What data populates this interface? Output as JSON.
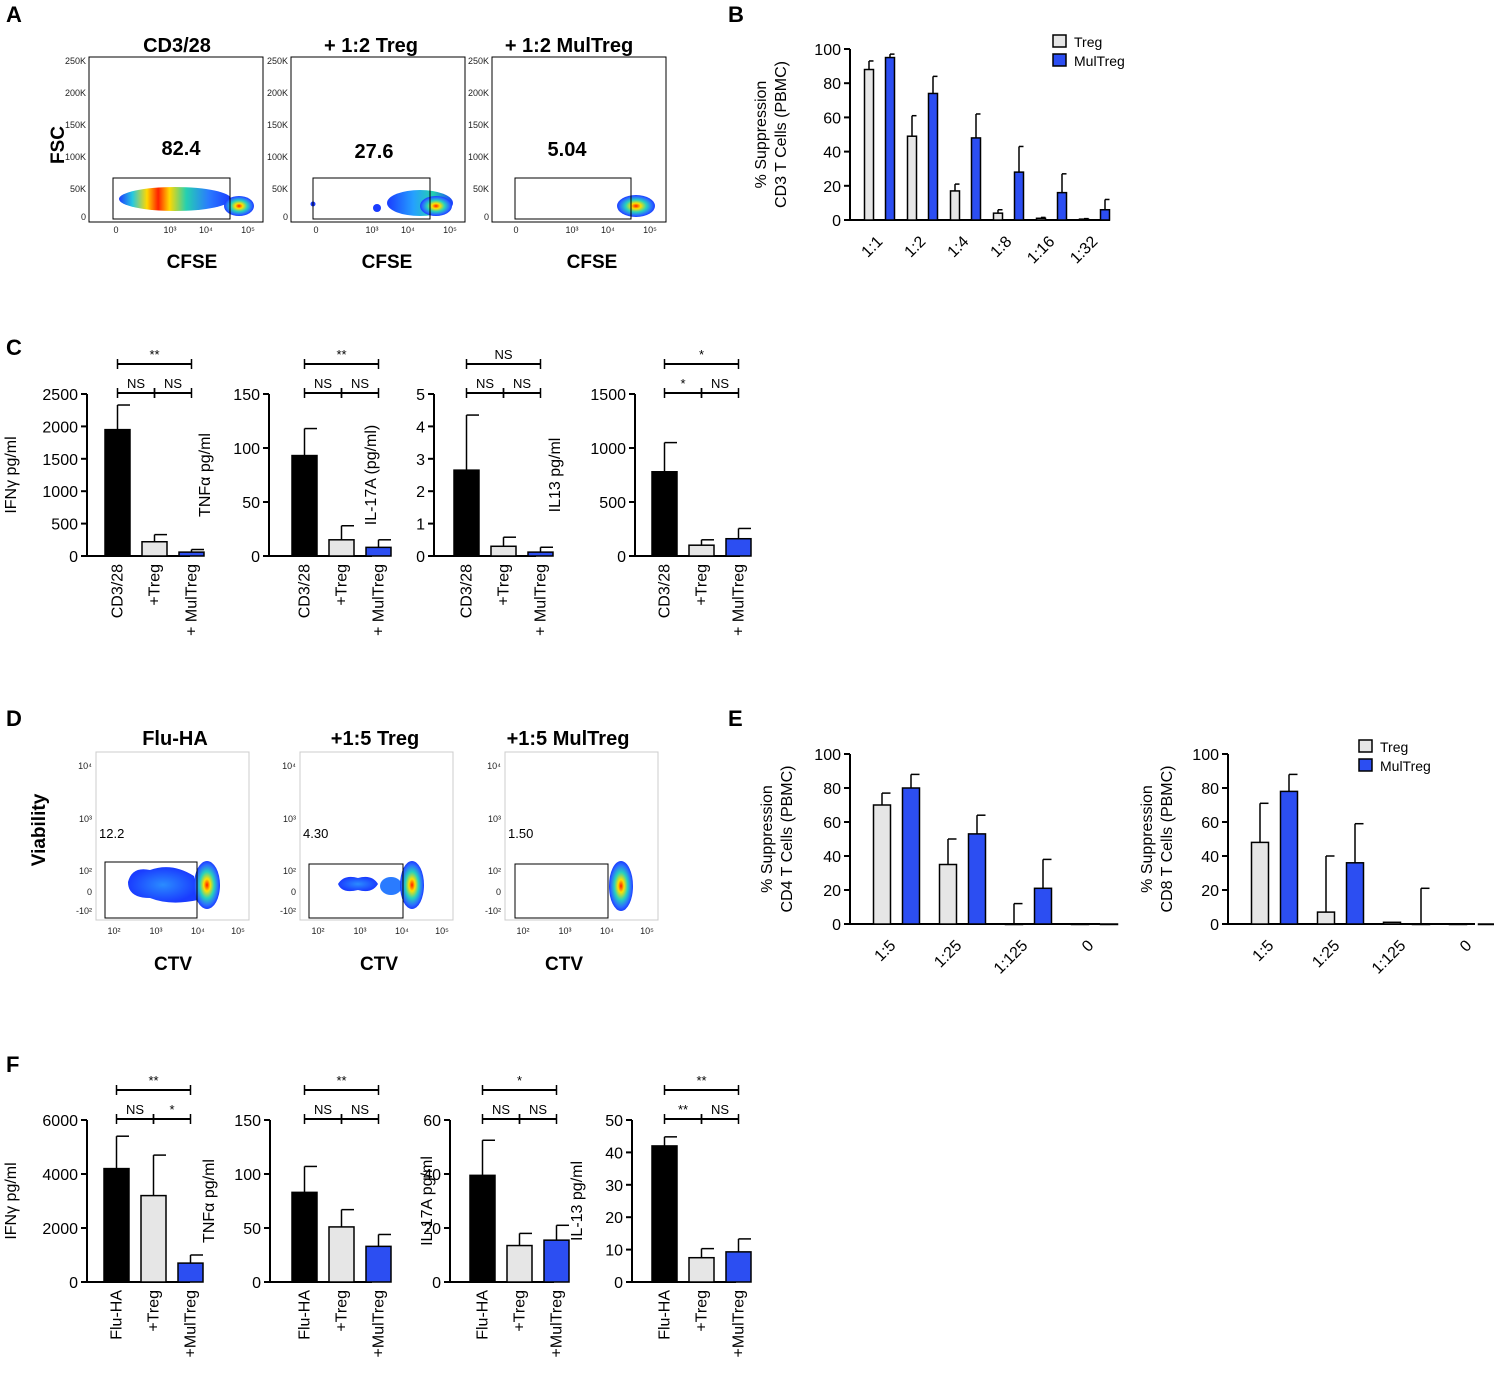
{
  "panel_labels": {
    "A": "A",
    "B": "B",
    "C": "C",
    "D": "D",
    "E": "E",
    "F": "F"
  },
  "panel_A": {
    "y_axis": "FSC",
    "x_axis": "CFSE",
    "y_ticks": [
      "250K",
      "200K",
      "150K",
      "100K",
      "50K",
      "0"
    ],
    "x_ticks": [
      "0",
      "10³",
      "10⁴",
      "10⁵"
    ],
    "plots": [
      {
        "title": "CD3/28",
        "gate_value": "82.4"
      },
      {
        "title": "+ 1:2 Treg",
        "gate_value": "27.6"
      },
      {
        "title": "+ 1:2 MulTreg",
        "gate_value": "5.04"
      }
    ]
  },
  "panel_D": {
    "y_axis": "Viability",
    "x_axis": "CTV",
    "y_ticks": [
      "10⁴",
      "10³",
      "10²",
      "0",
      "-10²"
    ],
    "x_ticks": [
      "10²",
      "10³",
      "10⁴",
      "10⁵"
    ],
    "plots": [
      {
        "title": "Flu-HA",
        "gate_value": "12.2"
      },
      {
        "title": "+1:5 Treg",
        "gate_value": "4.30"
      },
      {
        "title": "+1:5 MulTreg",
        "gate_value": "1.50"
      }
    ]
  },
  "colors": {
    "black_bar": "#000000",
    "grey_bar": "#e6e6e6",
    "blue_bar": "#2c4ef2",
    "flow_low": "#1a3cff",
    "flow_mid": "#25d0c8",
    "flow_high": "#ffe000",
    "flow_peak": "#ff2000"
  },
  "chart_data": [
    {
      "id": "B",
      "type": "bar",
      "ylabel": [
        "% Suppression",
        "CD3 T Cells (PBMC)"
      ],
      "categories": [
        "1:1",
        "1:2",
        "1:4",
        "1:8",
        "1:16",
        "1:32"
      ],
      "ylim": [
        0,
        100
      ],
      "yticks": [
        0,
        20,
        40,
        60,
        80,
        100
      ],
      "series": [
        {
          "name": "Treg",
          "values": [
            88,
            49,
            17,
            4,
            1,
            0.5
          ],
          "errors": [
            5,
            12,
            4,
            2,
            0.5,
            0.3
          ]
        },
        {
          "name": "MulTreg",
          "values": [
            95,
            74,
            48,
            28,
            16,
            6
          ],
          "errors": [
            2,
            10,
            14,
            15,
            11,
            6
          ]
        }
      ],
      "legend": "top-right"
    },
    {
      "id": "C1",
      "type": "bar",
      "ylabel": [
        "IFNγ pg/ml"
      ],
      "categories": [
        "CD3/28",
        "+Treg",
        "+ MulTreg"
      ],
      "ylim": [
        0,
        2500
      ],
      "yticks": [
        0,
        500,
        1000,
        1500,
        2000,
        2500
      ],
      "values": [
        1950,
        220,
        60
      ],
      "errors": [
        380,
        110,
        40
      ],
      "significance": [
        {
          "from": 0,
          "to": 2,
          "label": "**",
          "level": 1
        },
        {
          "from": 0,
          "to": 1,
          "label": "NS",
          "level": 0
        },
        {
          "from": 1,
          "to": 2,
          "label": "NS",
          "level": 0
        }
      ]
    },
    {
      "id": "C2",
      "type": "bar",
      "ylabel": [
        "TNFα pg/ml"
      ],
      "categories": [
        "CD3/28",
        "+Treg",
        "+ MulTreg"
      ],
      "ylim": [
        0,
        150
      ],
      "yticks": [
        0,
        50,
        100,
        150
      ],
      "values": [
        93,
        15,
        8
      ],
      "errors": [
        25,
        13,
        7
      ],
      "significance": [
        {
          "from": 0,
          "to": 2,
          "label": "**",
          "level": 1
        },
        {
          "from": 0,
          "to": 1,
          "label": "NS",
          "level": 0
        },
        {
          "from": 1,
          "to": 2,
          "label": "NS",
          "level": 0
        }
      ]
    },
    {
      "id": "C3",
      "type": "bar",
      "ylabel": [
        "IL-17A (pg/ml)"
      ],
      "categories": [
        "CD3/28",
        "+Treg",
        "+ MulTreg"
      ],
      "ylim": [
        0,
        5
      ],
      "yticks": [
        0,
        1,
        2,
        3,
        4,
        5
      ],
      "values": [
        2.65,
        0.3,
        0.12
      ],
      "errors": [
        1.7,
        0.28,
        0.15
      ],
      "significance": [
        {
          "from": 0,
          "to": 2,
          "label": "NS",
          "level": 1
        },
        {
          "from": 0,
          "to": 1,
          "label": "NS",
          "level": 0
        },
        {
          "from": 1,
          "to": 2,
          "label": "NS",
          "level": 0
        }
      ]
    },
    {
      "id": "C4",
      "type": "bar",
      "ylabel": [
        "IL13 pg/ml"
      ],
      "categories": [
        "CD3/28",
        "+Treg",
        "+ MulTreg"
      ],
      "ylim": [
        0,
        1500
      ],
      "yticks": [
        0,
        500,
        1000,
        1500
      ],
      "values": [
        780,
        100,
        160
      ],
      "errors": [
        270,
        50,
        95
      ],
      "significance": [
        {
          "from": 0,
          "to": 2,
          "label": "*",
          "level": 1
        },
        {
          "from": 0,
          "to": 1,
          "label": "*",
          "level": 0
        },
        {
          "from": 1,
          "to": 2,
          "label": "NS",
          "level": 0
        }
      ]
    },
    {
      "id": "E1",
      "type": "bar",
      "ylabel": [
        "% Suppression",
        "CD4 T Cells (PBMC)"
      ],
      "categories": [
        "1:5",
        "1:25",
        "1:125",
        "0"
      ],
      "ylim": [
        0,
        100
      ],
      "yticks": [
        0,
        20,
        40,
        60,
        80,
        100
      ],
      "series": [
        {
          "name": "Treg",
          "values": [
            70,
            35,
            0,
            0
          ],
          "errors": [
            7,
            15,
            12,
            0
          ]
        },
        {
          "name": "MulTreg",
          "values": [
            80,
            53,
            21,
            0
          ],
          "errors": [
            8,
            11,
            17,
            0
          ]
        }
      ]
    },
    {
      "id": "E2",
      "type": "bar",
      "ylabel": [
        "% Suppression",
        "CD8 T Cells (PBMC)"
      ],
      "categories": [
        "1:5",
        "1:25",
        "1:125",
        "0"
      ],
      "ylim": [
        0,
        100
      ],
      "yticks": [
        0,
        20,
        40,
        60,
        80,
        100
      ],
      "series": [
        {
          "name": "Treg",
          "values": [
            48,
            7,
            1,
            0
          ],
          "errors": [
            23,
            33,
            0,
            0
          ]
        },
        {
          "name": "MulTreg",
          "values": [
            78,
            36,
            0,
            0
          ],
          "errors": [
            10,
            23,
            21,
            0
          ]
        }
      ],
      "legend": "top-right"
    },
    {
      "id": "F1",
      "type": "bar",
      "ylabel": [
        "IFNγ pg/ml"
      ],
      "categories": [
        "Flu-HA",
        "+Treg",
        "+MulTreg"
      ],
      "ylim": [
        0,
        6000
      ],
      "yticks": [
        0,
        2000,
        4000,
        6000
      ],
      "values": [
        4200,
        3200,
        700
      ],
      "errors": [
        1200,
        1500,
        300
      ],
      "significance": [
        {
          "from": 0,
          "to": 2,
          "label": "**",
          "level": 1
        },
        {
          "from": 0,
          "to": 1,
          "label": "NS",
          "level": 0
        },
        {
          "from": 1,
          "to": 2,
          "label": "*",
          "level": 0
        }
      ]
    },
    {
      "id": "F2",
      "type": "bar",
      "ylabel": [
        "TNFα pg/ml"
      ],
      "categories": [
        "Flu-HA",
        "+Treg",
        "+MulTreg"
      ],
      "ylim": [
        0,
        150
      ],
      "yticks": [
        0,
        50,
        100,
        150
      ],
      "values": [
        83,
        51,
        33
      ],
      "errors": [
        24,
        16,
        11
      ],
      "significance": [
        {
          "from": 0,
          "to": 2,
          "label": "**",
          "level": 1
        },
        {
          "from": 0,
          "to": 1,
          "label": "NS",
          "level": 0
        },
        {
          "from": 1,
          "to": 2,
          "label": "NS",
          "level": 0
        }
      ]
    },
    {
      "id": "F3",
      "type": "bar",
      "ylabel": [
        "IL-17A pg/ml"
      ],
      "categories": [
        "Flu-HA",
        "+Treg",
        "+MulTreg"
      ],
      "ylim": [
        0,
        60
      ],
      "yticks": [
        0,
        20,
        40,
        60
      ],
      "values": [
        39.5,
        13.5,
        15.5
      ],
      "errors": [
        13,
        4.5,
        5.5
      ],
      "significance": [
        {
          "from": 0,
          "to": 2,
          "label": "*",
          "level": 1
        },
        {
          "from": 0,
          "to": 1,
          "label": "NS",
          "level": 0
        },
        {
          "from": 1,
          "to": 2,
          "label": "NS",
          "level": 0
        }
      ]
    },
    {
      "id": "F4",
      "type": "bar",
      "ylabel": [
        "IL-13 pg/ml"
      ],
      "categories": [
        "Flu-HA",
        "+Treg",
        "+MulTreg"
      ],
      "ylim": [
        0,
        50
      ],
      "yticks": [
        0,
        10,
        20,
        30,
        40,
        50
      ],
      "values": [
        42,
        7.5,
        9.3
      ],
      "errors": [
        2.8,
        2.8,
        4
      ],
      "significance": [
        {
          "from": 0,
          "to": 2,
          "label": "**",
          "level": 1
        },
        {
          "from": 0,
          "to": 1,
          "label": "**",
          "level": 0
        },
        {
          "from": 1,
          "to": 2,
          "label": "NS",
          "level": 0
        }
      ]
    }
  ]
}
